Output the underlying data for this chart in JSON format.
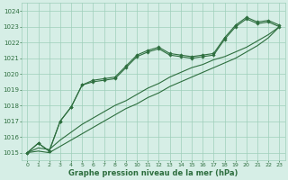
{
  "title": "Graphe pression niveau de la mer (hPa)",
  "bg_color": "#d6eee6",
  "grid_color": "#9ecfba",
  "line_color": "#2d6e3e",
  "xlim": [
    -0.5,
    23.5
  ],
  "ylim": [
    1014.5,
    1024.5
  ],
  "yticks": [
    1015,
    1016,
    1017,
    1018,
    1019,
    1020,
    1021,
    1022,
    1023,
    1024
  ],
  "xticks": [
    0,
    1,
    2,
    3,
    4,
    5,
    6,
    7,
    8,
    9,
    10,
    11,
    12,
    13,
    14,
    15,
    16,
    17,
    18,
    19,
    20,
    21,
    22,
    23
  ],
  "series_main": [
    1015.0,
    1015.6,
    1015.1,
    1017.0,
    1017.9,
    1019.3,
    1019.5,
    1019.6,
    1019.7,
    1020.4,
    1021.1,
    1021.4,
    1021.6,
    1021.2,
    1021.1,
    1021.0,
    1021.1,
    1021.2,
    1022.2,
    1023.0,
    1023.5,
    1023.2,
    1023.3,
    1023.0
  ],
  "series_upper": [
    1015.0,
    1015.6,
    1015.1,
    1017.0,
    1017.9,
    1019.3,
    1019.6,
    1019.7,
    1019.8,
    1020.5,
    1021.2,
    1021.5,
    1021.7,
    1021.3,
    1021.2,
    1021.1,
    1021.2,
    1021.3,
    1022.3,
    1023.1,
    1023.6,
    1023.3,
    1023.4,
    1023.1
  ],
  "series_trend1": [
    1015.0,
    1015.3,
    1015.2,
    1015.8,
    1016.3,
    1016.8,
    1017.2,
    1017.6,
    1018.0,
    1018.3,
    1018.7,
    1019.1,
    1019.4,
    1019.8,
    1020.1,
    1020.4,
    1020.6,
    1020.9,
    1021.1,
    1021.4,
    1021.7,
    1022.1,
    1022.5,
    1023.0
  ],
  "series_trend2": [
    1015.0,
    1015.1,
    1015.0,
    1015.4,
    1015.8,
    1016.2,
    1016.6,
    1017.0,
    1017.4,
    1017.8,
    1018.1,
    1018.5,
    1018.8,
    1019.2,
    1019.5,
    1019.8,
    1020.1,
    1020.4,
    1020.7,
    1021.0,
    1021.4,
    1021.8,
    1022.3,
    1023.0
  ]
}
